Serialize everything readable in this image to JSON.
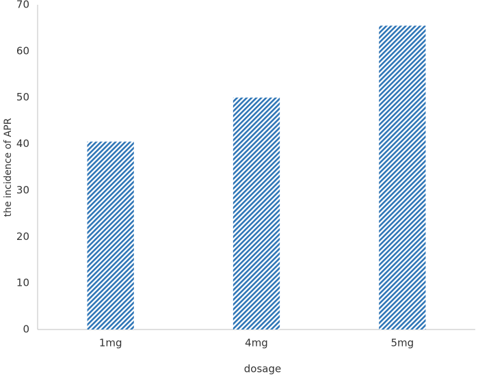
{
  "chart_data": {
    "type": "bar",
    "x_label": "dosage",
    "y_label": "the incidence of APR",
    "categories": [
      "1mg",
      "4mg",
      "5mg"
    ],
    "values": [
      40.5,
      50,
      65.5
    ],
    "color": "#2e75b6",
    "ylim": [
      0,
      70
    ],
    "yticks": [
      0,
      10,
      20,
      30,
      40,
      50,
      60,
      70
    ],
    "grid": false
  }
}
